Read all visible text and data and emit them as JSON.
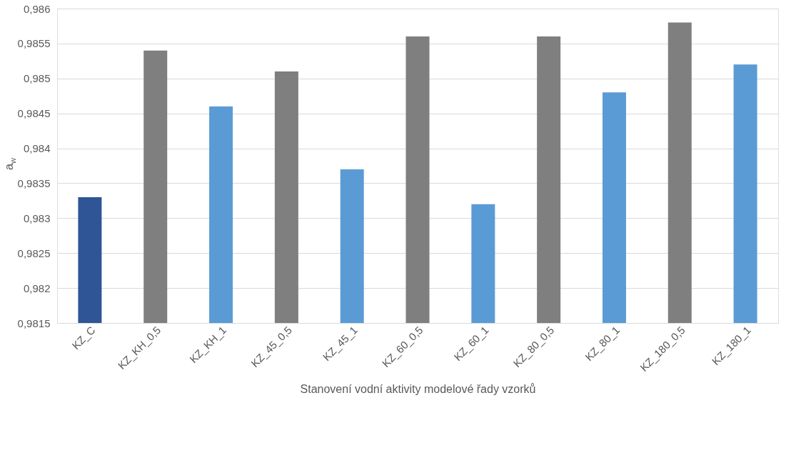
{
  "chart_data": {
    "type": "bar",
    "xlabel": "Stanovení vodní aktivity modelové řady vzorků",
    "ylabel": "a$_{w}$",
    "categories": [
      "KZ_C",
      "KZ_KH_0,5",
      "KZ_KH_1",
      "KZ_45_0,5",
      "KZ_45_1",
      "KZ_60_0,5",
      "KZ_60_1",
      "KZ_80_0,5",
      "KZ_80_1",
      "KZ_180_0,5",
      "KZ_180_1"
    ],
    "values": [
      0.9833,
      0.9854,
      0.9846,
      0.9851,
      0.9837,
      0.9856,
      0.9832,
      0.9856,
      0.9848,
      0.9858,
      0.9852
    ],
    "colors": [
      "#2f5597",
      "#7f7f7f",
      "#5b9bd5",
      "#7f7f7f",
      "#5b9bd5",
      "#7f7f7f",
      "#5b9bd5",
      "#7f7f7f",
      "#5b9bd5",
      "#7f7f7f",
      "#5b9bd5"
    ],
    "ylim": [
      0.9815,
      0.986
    ],
    "yticks": [
      {
        "value": 0.9815,
        "label": "0,9815"
      },
      {
        "value": 0.982,
        "label": "0,982"
      },
      {
        "value": 0.9825,
        "label": "0,9825"
      },
      {
        "value": 0.983,
        "label": "0,983"
      },
      {
        "value": 0.9835,
        "label": "0,9835"
      },
      {
        "value": 0.984,
        "label": "0,984"
      },
      {
        "value": 0.9845,
        "label": "0,9845"
      },
      {
        "value": 0.985,
        "label": "0,985"
      },
      {
        "value": 0.9855,
        "label": "0,9855"
      },
      {
        "value": 0.986,
        "label": "0,986"
      }
    ],
    "grid": "y"
  }
}
